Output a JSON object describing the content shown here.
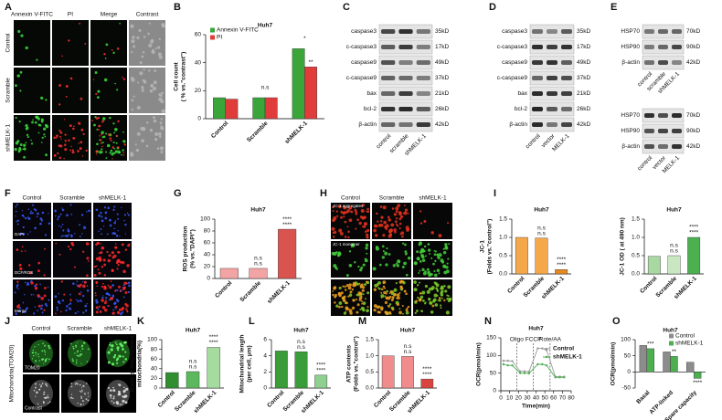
{
  "panel_labels": [
    "A",
    "B",
    "C",
    "D",
    "E",
    "F",
    "G",
    "H",
    "I",
    "J",
    "K",
    "L",
    "M",
    "N",
    "O"
  ],
  "figure_a": {
    "columns": [
      "Annexin V-FITC",
      "PI",
      "Merge",
      "Contrast"
    ],
    "rows": [
      "Control",
      "Scramble",
      "shMELK-1"
    ]
  },
  "figure_f": {
    "columns": [
      "Control",
      "Scramble",
      "shMELK-1"
    ],
    "row_labels": [
      "DAPI",
      "DCF/ROS",
      "Merge"
    ]
  },
  "figure_h": {
    "columns": [
      "Control",
      "Scramble",
      "shMELK-1"
    ],
    "row_labels": [
      "JC-1 aggregates",
      "JC-1 monomer"
    ]
  },
  "figure_j": {
    "columns": [
      "Control",
      "Scramble",
      "shMELK-1"
    ],
    "side_label": "Mitochondria(TOM20)",
    "row_labels": [
      "TOM20",
      "Contrast"
    ]
  },
  "blots": [
    {
      "proteins": [
        "caspase3",
        "c-caspase3",
        "caspase9",
        "c-caspase9",
        "bax",
        "bcl-2",
        "β-actin"
      ],
      "sizes": [
        "35kD",
        "17kD",
        "49kD",
        "37kD",
        "21kD",
        "26kD",
        "42kD"
      ],
      "lanes": [
        "control",
        "scramble",
        "shMELK-1"
      ]
    },
    {
      "proteins": [
        "caspase3",
        "c-caspase3",
        "caspase9",
        "c-caspase9",
        "bax",
        "bcl-2",
        "β-actin"
      ],
      "sizes": [
        "35kD",
        "17kD",
        "49kD",
        "37kD",
        "21kD",
        "26kD",
        "42kD"
      ],
      "lanes": [
        "control",
        "vector",
        "MELK-1"
      ]
    },
    {
      "proteins": [
        "HSP70",
        "HSP90",
        "β-actin"
      ],
      "sizes": [
        "70kD",
        "90kD",
        "42kD"
      ],
      "lanes": [
        "control",
        "scramble",
        "shMELK-1"
      ]
    },
    {
      "proteins": [
        "HSP70",
        "HSP90",
        "β-actin"
      ],
      "sizes": [
        "70kD",
        "90kD",
        "42kD"
      ],
      "lanes": [
        "control",
        "vector",
        "MELK-1"
      ]
    }
  ],
  "chart_data": [
    {
      "type": "bar",
      "title": "Huh7",
      "ylabel": [
        "Cell count",
        "( % vs.\"contrast\")"
      ],
      "categories": [
        "Control",
        "Scramble",
        "shMELK-1"
      ],
      "series": [
        {
          "name": "Annexin V-FITC",
          "color": "#3aa63a",
          "values": [
            15,
            15,
            50
          ]
        },
        {
          "name": "PI",
          "color": "#e03c3c",
          "values": [
            14,
            15,
            37
          ],
          "significance": [
            null,
            null,
            "**"
          ]
        }
      ],
      "ylim": [
        0,
        60
      ],
      "yticks": [
        0,
        20,
        40,
        60
      ],
      "significance": [
        null,
        "n.s",
        "*"
      ]
    },
    {
      "type": "bar",
      "title": "Huh7",
      "ylabel": [
        "ROS production",
        "(% vs.\"DAPI\")"
      ],
      "categories": [
        "Control",
        "Scramble",
        "shMELK-1"
      ],
      "values": [
        17,
        17,
        83
      ],
      "colors": [
        "#f2a3a3",
        "#f2a3a3",
        "#d9534f"
      ],
      "ylim": [
        0,
        100
      ],
      "yticks": [
        0,
        20,
        40,
        60,
        80,
        100
      ],
      "significance": [
        null,
        "n.s",
        "****"
      ]
    },
    {
      "type": "bar",
      "title": "Huh7",
      "ylabel": [
        "JC-1",
        "(Folds vs.\"control\")"
      ],
      "categories": [
        "Control",
        "Scramble",
        "shMELK-1"
      ],
      "values": [
        1.0,
        0.98,
        0.12
      ],
      "colors": [
        "#f5a84a",
        "#f5a84a",
        "#e8891c"
      ],
      "ylim": [
        0,
        1.5
      ],
      "yticks": [
        {
          "value": 0,
          "label": "0.0"
        },
        {
          "value": 0.5,
          "label": "0.5"
        },
        {
          "value": 1,
          "label": "1.0"
        },
        {
          "value": 1.5,
          "label": "1.5"
        }
      ],
      "significance": [
        null,
        "n.s",
        "****"
      ]
    },
    {
      "type": "bar",
      "title": "Huh7",
      "ylabel": [
        "JC-1 OD ( at 490 nm)"
      ],
      "categories": [
        "Control",
        "Scramble",
        "shMELK-1"
      ],
      "values": [
        0.48,
        0.5,
        1.0
      ],
      "colors": [
        "#a9d8a2",
        "#c9e8c2",
        "#4caf50"
      ],
      "ylim": [
        0,
        1.5
      ],
      "yticks": [
        {
          "value": 0,
          "label": "0.0"
        },
        {
          "value": 0.5,
          "label": "0.5"
        },
        {
          "value": 1,
          "label": "1.0"
        },
        {
          "value": 1.5,
          "label": "1.5"
        }
      ],
      "significance": [
        null,
        "n.s",
        "****"
      ]
    },
    {
      "type": "bar",
      "title": "Huh7",
      "ylabel": [
        "Ratio of fragmented",
        "mitochondria(%)"
      ],
      "categories": [
        "Control",
        "Scramble",
        "shMELK-1"
      ],
      "values": [
        32,
        34,
        84
      ],
      "colors": [
        "#2f8f2f",
        "#5cb85c",
        "#a6dba0"
      ],
      "ylim": [
        0,
        100
      ],
      "yticks": [
        0,
        20,
        40,
        60,
        80,
        100
      ],
      "significance": [
        null,
        "n.s",
        "****"
      ]
    },
    {
      "type": "bar",
      "title": "Huh7",
      "ylabel": [
        "Mitochondrial length",
        "(per cell, μm)"
      ],
      "categories": [
        "Control",
        "Scramble",
        "shMELK-1"
      ],
      "values": [
        4.6,
        4.5,
        1.6
      ],
      "colors": [
        "#3a9d3a",
        "#3a9d3a",
        "#8fcf8f"
      ],
      "ylim": [
        0,
        6
      ],
      "yticks": [
        0,
        2,
        4,
        6
      ],
      "significance": [
        null,
        "n.s",
        "****"
      ]
    },
    {
      "type": "bar",
      "title": "Huh7",
      "ylabel": [
        "ATP contents",
        "(Folds vs.\"control\")"
      ],
      "categories": [
        "Control",
        "Scramble",
        "shMELK-1"
      ],
      "values": [
        1.0,
        0.98,
        0.28
      ],
      "colors": [
        "#f08c8c",
        "#f08c8c",
        "#d9443f"
      ],
      "ylim": [
        0,
        1.5
      ],
      "yticks": [
        {
          "value": 0,
          "label": "0.0"
        },
        {
          "value": 0.5,
          "label": "0.5"
        },
        {
          "value": 1,
          "label": "1.0"
        },
        {
          "value": 1.5,
          "label": "1.5"
        }
      ],
      "significance": [
        null,
        "n.s",
        "****"
      ]
    },
    {
      "type": "line",
      "title": "Huh7",
      "ylabel": [
        "OCR(pmol/min)"
      ],
      "xlabel": "Time(min)",
      "x": [
        3,
        8,
        13,
        22,
        27,
        32,
        42,
        47,
        52,
        62,
        67,
        72
      ],
      "series": [
        {
          "name": "Control",
          "color": "#9a9a9a",
          "values": [
            85,
            85,
            84,
            55,
            55,
            54,
            120,
            120,
            115,
            40,
            40,
            40
          ]
        },
        {
          "name": "shMELK-1",
          "color": "#4caf50",
          "values": [
            75,
            72,
            72,
            50,
            50,
            49,
            75,
            75,
            72,
            38,
            38,
            38
          ]
        }
      ],
      "injections": [
        {
          "label": "Oligo",
          "x": 18
        },
        {
          "label": "FCCP",
          "x": 37
        },
        {
          "label": "Rote/AA",
          "x": 56
        }
      ],
      "xlim": [
        0,
        80
      ],
      "xticks": [
        0,
        10,
        20,
        30,
        40,
        50,
        60,
        70,
        80
      ],
      "ylim": [
        0,
        150
      ],
      "yticks": [
        0,
        50,
        100,
        150
      ]
    },
    {
      "type": "bar",
      "title": "Huh7",
      "ylabel": [
        "OCR(pmol/min)"
      ],
      "categories": [
        "Basal",
        "ATP-linked",
        "Spare capacity"
      ],
      "series": [
        {
          "name": "Control",
          "color": "#8c8c8c",
          "values": [
            82,
            62,
            30
          ]
        },
        {
          "name": "shMELK-1",
          "color": "#4caf50",
          "values": [
            72,
            48,
            -20
          ],
          "significance": [
            "***",
            "**",
            "****"
          ]
        }
      ],
      "ylim": [
        -50,
        100
      ],
      "yticks": [
        -50,
        0,
        50,
        100
      ]
    }
  ]
}
